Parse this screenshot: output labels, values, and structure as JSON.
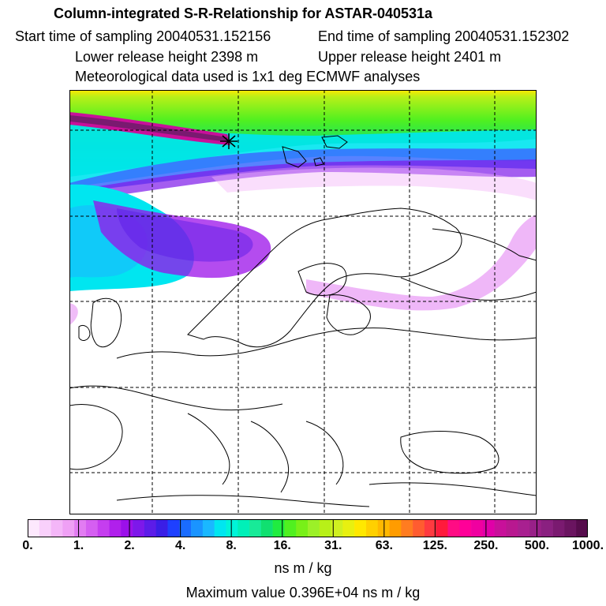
{
  "header": {
    "title": "Column-integrated S-R-Relationship for ASTAR-040531a",
    "start_time": "Start time of sampling 20040531.152156",
    "end_time": "End time of sampling 20040531.152302",
    "lower_release": "Lower release height 2398 m",
    "upper_release": "Upper release height 2401 m",
    "met_data": "Meteorological data used is 1x1 deg ECMWF analyses"
  },
  "colorbar": {
    "tick_labels": [
      "0.",
      "1.",
      "2.",
      "4.",
      "8.",
      "16.",
      "31.",
      "63.",
      "125.",
      "250.",
      "500.",
      "1000."
    ],
    "units": "ns m / kg",
    "colors": [
      "#fde8fd",
      "#f9d0fb",
      "#f4b6f8",
      "#efa0f5",
      "#e27cf2",
      "#d55ff1",
      "#c53eef",
      "#b020ec",
      "#9b10ea",
      "#7d18ea",
      "#5c1ce8",
      "#3a1ee6",
      "#1e40ff",
      "#1a6cff",
      "#1a94ff",
      "#1ab8ff",
      "#00e6f0",
      "#00f4d8",
      "#00f0b8",
      "#18ea98",
      "#10e070",
      "#20ec40",
      "#50f020",
      "#78f018",
      "#9cf028",
      "#b8f018",
      "#d0f020",
      "#e8f010",
      "#ffe800",
      "#ffd000",
      "#ffb800",
      "#ff9c00",
      "#ff7c20",
      "#ff5c30",
      "#ff3a40",
      "#ff1a3c",
      "#ff0c84",
      "#ff0098",
      "#f000a0",
      "#e000a8",
      "#c8109a",
      "#b81890",
      "#a82090",
      "#982088",
      "#8a2080",
      "#7a1a70",
      "#6a1460",
      "#560c4c"
    ]
  },
  "footer": {
    "max_value": "Maximum value  0.396E+04 ns m / kg"
  },
  "map": {
    "release_marker_icon": "star-marker-icon",
    "land_outline_color": "#000000",
    "gridline_color": "#000000"
  }
}
